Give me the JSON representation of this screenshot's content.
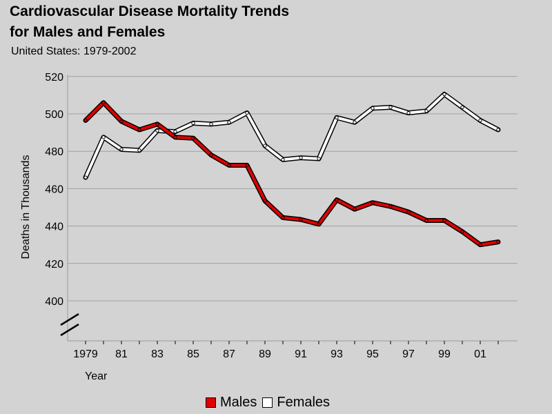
{
  "chart": {
    "title_line1": "Cardiovascular Disease Mortality Trends",
    "title_line2": "for Males and Females",
    "subtitle": "United States: 1979-2002"
  },
  "colors": {
    "background": "#d3d3d3",
    "grid": "#a0a0a0",
    "males": "#e00000",
    "females": "#ffffff"
  },
  "chart_data": {
    "type": "line",
    "title": "Cardiovascular Disease Mortality Trends for Males and Females",
    "subtitle": "United States: 1979-2002",
    "xlabel": "Year",
    "ylabel": "Deaths in Thousands",
    "x": [
      1979,
      1980,
      1981,
      1982,
      1983,
      1984,
      1985,
      1986,
      1987,
      1988,
      1989,
      1990,
      1991,
      1992,
      1993,
      1994,
      1995,
      1996,
      1997,
      1998,
      1999,
      2000,
      2001,
      2002
    ],
    "x_tick_labels": [
      {
        "year": 1979,
        "label": "1979"
      },
      {
        "year": 1981,
        "label": "81"
      },
      {
        "year": 1983,
        "label": "83"
      },
      {
        "year": 1985,
        "label": "85"
      },
      {
        "year": 1987,
        "label": "87"
      },
      {
        "year": 1989,
        "label": "89"
      },
      {
        "year": 1991,
        "label": "91"
      },
      {
        "year": 1993,
        "label": "93"
      },
      {
        "year": 1995,
        "label": "95"
      },
      {
        "year": 1997,
        "label": "97"
      },
      {
        "year": 1999,
        "label": "99"
      },
      {
        "year": 2001,
        "label": "01"
      }
    ],
    "y_ticks": [
      400,
      420,
      440,
      460,
      480,
      500,
      520
    ],
    "ylim": [
      400,
      520
    ],
    "y_axis_break": true,
    "grid": true,
    "legend_position": "bottom-center",
    "series": [
      {
        "name": "Males",
        "color": "#e00000",
        "values": [
          496.5,
          506,
          496,
          491.5,
          494.5,
          487.5,
          487,
          478,
          472.5,
          472.5,
          453.5,
          444.5,
          443.5,
          441,
          454,
          449,
          452.5,
          450.5,
          447.5,
          443,
          443,
          437,
          430,
          431.5
        ]
      },
      {
        "name": "Females",
        "color": "#ffffff",
        "values": [
          466,
          487.5,
          481,
          480.5,
          491,
          490.5,
          495,
          494.5,
          495.5,
          500.5,
          483,
          475.5,
          476.5,
          476,
          498,
          495.5,
          503,
          503.5,
          500.5,
          501.5,
          510.5,
          503.5,
          496.5,
          491.5
        ]
      }
    ]
  }
}
